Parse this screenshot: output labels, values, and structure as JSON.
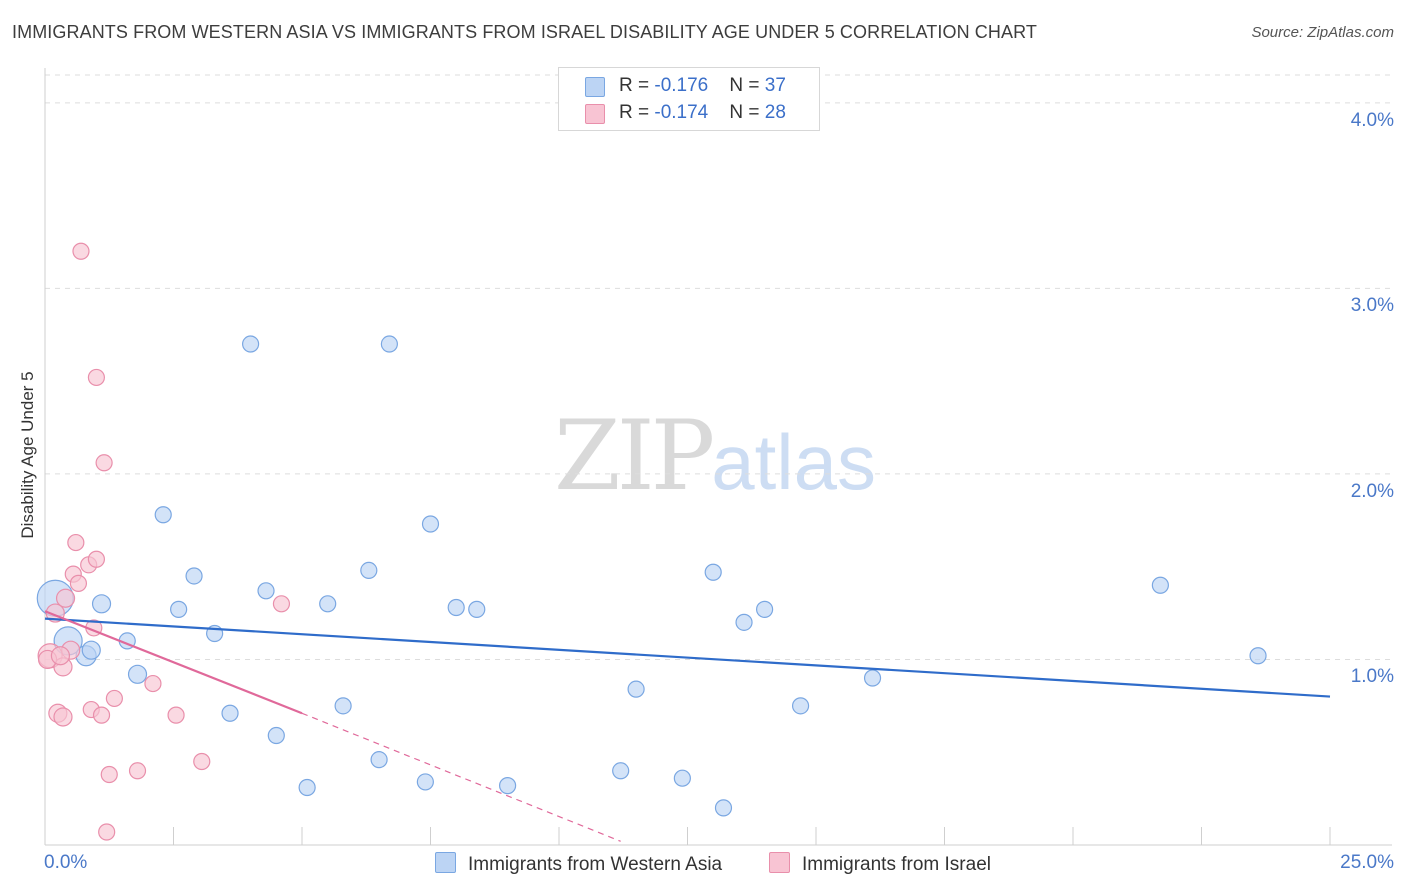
{
  "title": "IMMIGRANTS FROM WESTERN ASIA VS IMMIGRANTS FROM ISRAEL DISABILITY AGE UNDER 5 CORRELATION CHART",
  "source": "Source: ZipAtlas.com",
  "watermark": {
    "zip": "ZIP",
    "atlas": "atlas"
  },
  "legend": {
    "rows": [
      {
        "r_label": "R = ",
        "r_value": "-0.176",
        "n_label": "N = ",
        "n_value": "37"
      },
      {
        "r_label": "R = ",
        "r_value": "-0.174",
        "n_label": "N = ",
        "n_value": "28"
      }
    ]
  },
  "colors": {
    "blue_fill": "#bcd4f4",
    "blue_stroke": "#7aa7e2",
    "blue_line": "#2f6cca",
    "pink_fill": "#f8c4d3",
    "pink_stroke": "#e98fab",
    "pink_line": "#e0699a",
    "tick_text": "#4a78c8",
    "grid": "#dddddd"
  },
  "chart_data": {
    "type": "scatter",
    "title": "IMMIGRANTS FROM WESTERN ASIA VS IMMIGRANTS FROM ISRAEL DISABILITY AGE UNDER 5 CORRELATION CHART",
    "xlabel": "",
    "ylabel": "Disability Age Under 5",
    "xlim": [
      0,
      25
    ],
    "ylim": [
      0,
      4.15
    ],
    "x_tick_labels": [
      "0.0%",
      "25.0%"
    ],
    "y_ticks": [
      1.0,
      2.0,
      3.0,
      4.0
    ],
    "y_tick_labels": [
      "1.0%",
      "2.0%",
      "3.0%",
      "4.0%"
    ],
    "grid": "horizontal dashed",
    "legend_position": "top-center and bottom",
    "series": [
      {
        "name": "Immigrants from Western Asia",
        "color": "blue",
        "points": [
          [
            0.2,
            1.33,
            18
          ],
          [
            0.45,
            1.1,
            14
          ],
          [
            0.8,
            1.02,
            10
          ],
          [
            1.1,
            1.3,
            9
          ],
          [
            1.6,
            1.1,
            8
          ],
          [
            1.8,
            0.92,
            9
          ],
          [
            2.3,
            1.78,
            8
          ],
          [
            2.6,
            1.27,
            8
          ],
          [
            2.9,
            1.45,
            8
          ],
          [
            3.3,
            1.14,
            8
          ],
          [
            3.6,
            0.71,
            8
          ],
          [
            4.0,
            2.7,
            8
          ],
          [
            4.3,
            1.37,
            8
          ],
          [
            4.5,
            0.59,
            8
          ],
          [
            5.1,
            0.31,
            8
          ],
          [
            5.5,
            1.3,
            8
          ],
          [
            5.8,
            0.75,
            8
          ],
          [
            6.3,
            1.48,
            8
          ],
          [
            6.5,
            0.46,
            8
          ],
          [
            6.7,
            2.7,
            8
          ],
          [
            7.4,
            0.34,
            8
          ],
          [
            7.5,
            1.73,
            8
          ],
          [
            8.0,
            1.28,
            8
          ],
          [
            8.4,
            1.27,
            8
          ],
          [
            9.0,
            0.32,
            8
          ],
          [
            11.2,
            0.4,
            8
          ],
          [
            11.5,
            0.84,
            8
          ],
          [
            12.4,
            0.36,
            8
          ],
          [
            13.0,
            1.47,
            8
          ],
          [
            13.2,
            0.2,
            8
          ],
          [
            13.6,
            1.2,
            8
          ],
          [
            14.0,
            1.27,
            8
          ],
          [
            14.7,
            0.75,
            8
          ],
          [
            16.1,
            0.9,
            8
          ],
          [
            21.7,
            1.4,
            8
          ],
          [
            23.6,
            1.02,
            8
          ],
          [
            0.9,
            1.05,
            9
          ]
        ]
      },
      {
        "name": "Immigrants from Israel",
        "color": "pink",
        "points": [
          [
            0.1,
            1.02,
            12
          ],
          [
            0.2,
            1.25,
            9
          ],
          [
            0.25,
            0.71,
            9
          ],
          [
            0.35,
            0.96,
            9
          ],
          [
            0.35,
            0.69,
            9
          ],
          [
            0.4,
            1.33,
            9
          ],
          [
            0.5,
            1.05,
            9
          ],
          [
            0.55,
            1.46,
            8
          ],
          [
            0.6,
            1.63,
            8
          ],
          [
            0.65,
            1.41,
            8
          ],
          [
            0.7,
            3.2,
            8
          ],
          [
            0.85,
            1.51,
            8
          ],
          [
            0.9,
            0.73,
            8
          ],
          [
            0.95,
            1.17,
            8
          ],
          [
            1.0,
            1.54,
            8
          ],
          [
            1.0,
            2.52,
            8
          ],
          [
            1.1,
            0.7,
            8
          ],
          [
            1.15,
            2.06,
            8
          ],
          [
            1.2,
            0.07,
            8
          ],
          [
            1.25,
            0.38,
            8
          ],
          [
            1.35,
            0.79,
            8
          ],
          [
            1.8,
            0.4,
            8
          ],
          [
            2.1,
            0.87,
            8
          ],
          [
            2.55,
            0.7,
            8
          ],
          [
            3.05,
            0.45,
            8
          ],
          [
            4.6,
            1.3,
            8
          ],
          [
            0.05,
            1.0,
            9
          ],
          [
            0.3,
            1.02,
            9
          ]
        ]
      }
    ],
    "trendlines": [
      {
        "series": "Immigrants from Western Asia",
        "x": [
          0,
          25
        ],
        "y": [
          1.22,
          0.8
        ],
        "style": "solid"
      },
      {
        "series": "Immigrants from Israel",
        "x": [
          0,
          5
        ],
        "y": [
          1.26,
          0.71
        ],
        "style": "solid"
      },
      {
        "series": "Immigrants from Israel",
        "x": [
          5,
          11.2
        ],
        "y": [
          0.71,
          0.02
        ],
        "style": "dashed"
      }
    ]
  },
  "bottom_legend": [
    {
      "label": "Immigrants from Western Asia"
    },
    {
      "label": "Immigrants from Israel"
    }
  ]
}
